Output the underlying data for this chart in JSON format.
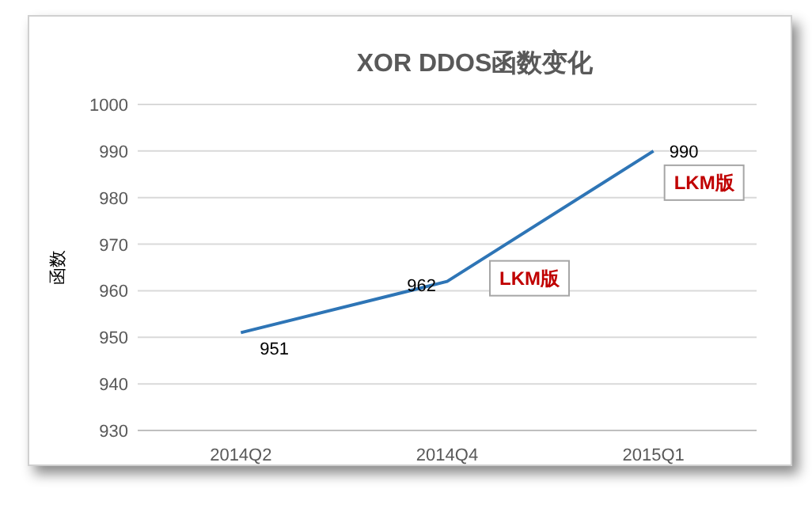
{
  "chart_data": {
    "type": "line",
    "title": "XOR DDOS函数变化",
    "ylabel": "函数",
    "categories": [
      "2014Q2",
      "2014Q4",
      "2015Q1"
    ],
    "series": [
      {
        "color": "#2e75b6",
        "values": [
          951,
          962,
          990
        ]
      }
    ],
    "ylim": [
      930,
      1000
    ],
    "yticks": [
      930,
      940,
      950,
      960,
      970,
      980,
      990,
      1000
    ],
    "grid": "y",
    "data_labels": true,
    "marker": "none",
    "line_style": "solid",
    "annotations": [
      {
        "text": "LKM版",
        "x": "2014Q4",
        "y": 962
      },
      {
        "text": "LKM版",
        "x": "2015Q1",
        "y": 990
      }
    ]
  }
}
